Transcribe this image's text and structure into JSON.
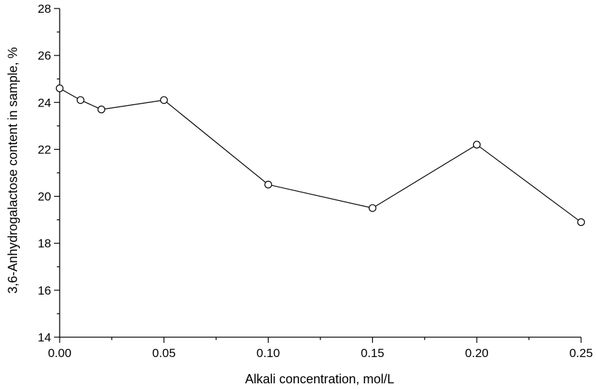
{
  "chart_data": {
    "type": "line",
    "title": "",
    "xlabel": "Alkali concentration, mol/L",
    "ylabel": "3,6-Anhydrogalactose content in sample, %",
    "xlim": [
      0,
      0.25
    ],
    "ylim": [
      14,
      28
    ],
    "x_ticks": [
      "0.00",
      "0.05",
      "0.10",
      "0.15",
      "0.20",
      "0.25"
    ],
    "y_ticks": [
      "14",
      "16",
      "18",
      "20",
      "22",
      "24",
      "26",
      "28"
    ],
    "grid": false,
    "legend": "none",
    "marker": "open-circle",
    "line_color": "#000000",
    "series": [
      {
        "x": [
          0.0,
          0.01,
          0.02,
          0.05,
          0.1,
          0.15,
          0.2,
          0.25
        ],
        "values": [
          24.6,
          24.1,
          23.7,
          24.1,
          20.5,
          19.5,
          22.2,
          18.9
        ]
      }
    ]
  }
}
